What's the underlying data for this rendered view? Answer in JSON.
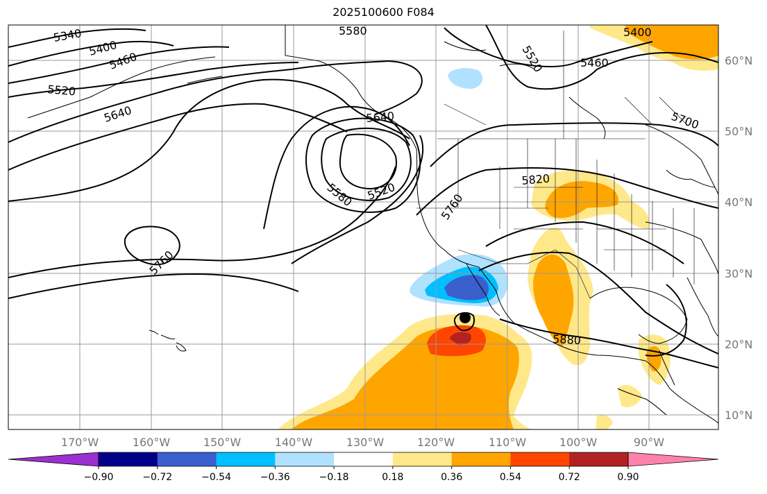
{
  "title": "2025100600 F084",
  "longitude_labels": [
    "170°W",
    "160°W",
    "150°W",
    "140°W",
    "130°W",
    "120°W",
    "110°W",
    "100°W",
    "90°W"
  ],
  "latitude_labels": [
    "60°N",
    "50°N",
    "40°N",
    "30°N",
    "20°N",
    "10°N"
  ],
  "contour_labels": [
    "5340",
    "5400",
    "5460",
    "5520",
    "5640",
    "5580",
    "5640",
    "5520",
    "5580",
    "5760",
    "5820",
    "5760",
    "5700",
    "5520",
    "5460",
    "5400",
    "5880"
  ],
  "colorbar": {
    "ticks": [
      "−0.90",
      "−0.72",
      "−0.54",
      "−0.36",
      "−0.18",
      "0.18",
      "0.36",
      "0.54",
      "0.72",
      "0.90"
    ],
    "colors": [
      "#9b30d0",
      "#00008b",
      "#3a5fcd",
      "#00bfff",
      "#b0e2ff",
      "#ffffff",
      "#ffe88a",
      "#ffa500",
      "#ff4500",
      "#b22222",
      "#ff82ab"
    ]
  },
  "colors": {
    "grid": "#999999",
    "contour": "#000000",
    "coast": "#000000"
  }
}
